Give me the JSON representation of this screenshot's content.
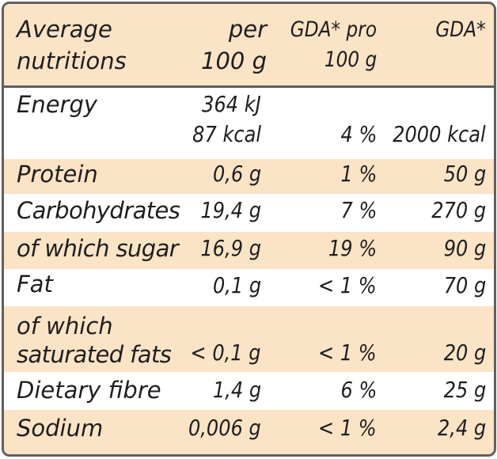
{
  "header": {
    "col0": [
      "Average",
      "nutritions"
    ],
    "col1": [
      "per",
      "100 g"
    ],
    "col2": [
      "GDA* pro",
      "100 g"
    ],
    "col3": [
      "GDA*"
    ]
  },
  "rows": [
    {
      "name": [
        "Energy"
      ],
      "per100": [
        "364 kJ",
        "87 kcal"
      ],
      "gda_pct": "4 %",
      "gda": "2000 kcal"
    },
    {
      "name": [
        "Protein"
      ],
      "per100": [
        "0,6 g"
      ],
      "gda_pct": "1 %",
      "gda": "50 g"
    },
    {
      "name": [
        "Carbohydrates"
      ],
      "per100": [
        "19,4 g"
      ],
      "gda_pct": "7 %",
      "gda": "270 g"
    },
    {
      "name": [
        "of which sugar"
      ],
      "per100": [
        "16,9 g"
      ],
      "gda_pct": "19 %",
      "gda": "90 g"
    },
    {
      "name": [
        "Fat"
      ],
      "per100": [
        "0,1 g"
      ],
      "gda_pct": "< 1 %",
      "gda": "70 g"
    },
    {
      "name": [
        "of which",
        "saturated fats"
      ],
      "per100": [
        "< 0,1 g"
      ],
      "gda_pct": "< 1 %",
      "gda": "20 g"
    },
    {
      "name": [
        "Dietary fibre"
      ],
      "per100": [
        "1,4 g"
      ],
      "gda_pct": "6 %",
      "gda": "25 g"
    },
    {
      "name": [
        "Sodium"
      ],
      "per100": [
        "0,006 g"
      ],
      "gda_pct": "< 1 %",
      "gda": "2,4 g"
    }
  ],
  "colors": {
    "band": "#fbe3c5",
    "border": "#5f5f5f",
    "text": "#1e1e1e"
  }
}
